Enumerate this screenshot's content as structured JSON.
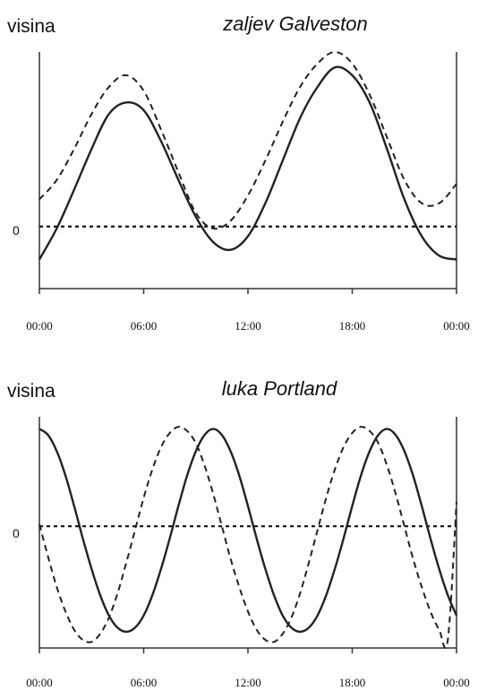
{
  "chart_data": [
    {
      "type": "line",
      "title": "zaljev Galveston",
      "ylabel": "visina",
      "zero_label": "0",
      "xlim": [
        0,
        24
      ],
      "ylim": [
        -1.6,
        4.5
      ],
      "x_ticks": [
        0,
        6,
        12,
        18,
        24
      ],
      "tick_labels": [
        "00:00",
        "06:00",
        "12:00",
        "18:00",
        "00:00"
      ],
      "series": [
        {
          "style": "solid",
          "x": [
            0,
            1,
            2,
            3,
            4,
            5,
            6,
            7,
            8,
            9,
            10,
            11,
            12,
            13,
            14,
            15,
            16,
            17,
            18,
            19,
            20,
            21,
            22,
            23,
            24
          ],
          "y": [
            -0.85,
            -0.05,
            0.95,
            2.0,
            2.9,
            3.2,
            3.0,
            2.2,
            1.2,
            0.25,
            -0.4,
            -0.6,
            -0.25,
            0.6,
            1.7,
            2.8,
            3.6,
            4.1,
            3.9,
            3.2,
            2.0,
            0.7,
            -0.25,
            -0.75,
            -0.85
          ]
        },
        {
          "style": "dashed",
          "x": [
            0,
            1,
            2,
            3,
            4,
            5,
            6,
            7,
            8,
            9,
            10,
            11,
            12,
            13,
            14,
            15,
            16,
            17,
            18,
            19,
            20,
            21,
            22,
            23,
            24
          ],
          "y": [
            0.7,
            1.2,
            2.0,
            2.9,
            3.6,
            3.9,
            3.5,
            2.5,
            1.4,
            0.35,
            -0.05,
            0.15,
            0.8,
            1.7,
            2.7,
            3.6,
            4.2,
            4.5,
            4.2,
            3.4,
            2.3,
            1.2,
            0.6,
            0.6,
            1.1
          ]
        }
      ]
    },
    {
      "type": "line",
      "title": "luka Portland",
      "ylabel": "visina",
      "zero_label": "0",
      "xlim": [
        0,
        24
      ],
      "ylim": [
        -3.0,
        2.7
      ],
      "x_ticks": [
        0,
        6,
        12,
        18,
        24
      ],
      "tick_labels": [
        "00:00",
        "06:00",
        "12:00",
        "18:00",
        "00:00"
      ],
      "series": [
        {
          "style": "solid",
          "x": [
            0,
            0.5,
            1,
            1.5,
            2,
            2.5,
            3,
            3.5,
            4,
            4.5,
            5,
            5.5,
            6,
            6.5,
            7,
            7.5,
            8,
            8.5,
            9,
            9.5,
            10,
            10.5,
            11,
            11.5,
            12,
            12.5,
            13,
            13.5,
            14,
            14.5,
            15,
            15.5,
            16,
            16.5,
            17,
            17.5,
            18,
            18.5,
            19,
            19.5,
            20,
            20.5,
            21,
            21.5,
            22,
            22.5,
            23,
            23.5,
            24
          ],
          "y": [
            2.4,
            2.25,
            1.85,
            1.25,
            0.5,
            -0.3,
            -1.05,
            -1.7,
            -2.2,
            -2.5,
            -2.6,
            -2.5,
            -2.2,
            -1.7,
            -1.05,
            -0.3,
            0.5,
            1.25,
            1.85,
            2.25,
            2.4,
            2.25,
            1.85,
            1.25,
            0.5,
            -0.3,
            -1.05,
            -1.7,
            -2.2,
            -2.5,
            -2.6,
            -2.5,
            -2.2,
            -1.7,
            -1.05,
            -0.3,
            0.5,
            1.25,
            1.85,
            2.25,
            2.4,
            2.25,
            1.85,
            1.25,
            0.5,
            -0.3,
            -1.05,
            -1.7,
            -2.2
          ]
        },
        {
          "style": "dashed",
          "x": [
            0,
            0.5,
            1,
            1.5,
            2,
            2.5,
            3,
            3.5,
            4,
            4.5,
            5,
            5.5,
            6,
            6.5,
            7,
            7.5,
            8,
            8.5,
            9,
            9.5,
            10,
            10.5,
            11,
            11.5,
            12,
            12.5,
            13,
            13.5,
            14,
            14.5,
            15,
            15.5,
            16,
            16.5,
            17,
            17.5,
            18,
            18.5,
            19,
            19.5,
            20,
            20.5,
            21,
            21.5,
            22,
            22.5,
            23,
            23.5,
            24
          ],
          "y": [
            0.05,
            -0.75,
            -1.5,
            -2.1,
            -2.55,
            -2.8,
            -2.85,
            -2.65,
            -2.25,
            -1.65,
            -0.9,
            -0.1,
            0.7,
            1.4,
            1.95,
            2.3,
            2.45,
            2.35,
            2.05,
            1.5,
            0.8,
            0.0,
            -0.8,
            -1.5,
            -2.1,
            -2.55,
            -2.8,
            -2.85,
            -2.65,
            -2.25,
            -1.65,
            -0.9,
            -0.1,
            0.7,
            1.4,
            1.95,
            2.3,
            2.45,
            2.35,
            2.05,
            1.5,
            0.8,
            0.0,
            -0.8,
            -1.5,
            -2.1,
            -2.55,
            -2.8,
            0.6
          ]
        }
      ]
    }
  ]
}
